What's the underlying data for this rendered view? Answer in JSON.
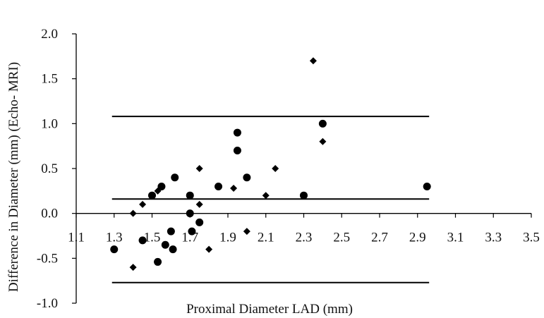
{
  "chart_data": {
    "type": "scatter",
    "title": "",
    "xlabel": "Proximal Diameter LAD (mm)",
    "ylabel": "Difference in Diameter (mm) (Echo- MRI)",
    "xlim": [
      1.1,
      3.5
    ],
    "ylim": [
      -1.0,
      2.0
    ],
    "x_ticks": [
      "1.1",
      "1.3",
      "1.5",
      "1.7",
      "1.9",
      "2.1",
      "2.3",
      "2.5",
      "2.7",
      "2.9",
      "3.1",
      "3.3",
      "3.5"
    ],
    "y_ticks": [
      "2.0",
      "1.5",
      "1.0",
      "0.5",
      "0.0",
      "-0.5",
      "-1.0"
    ],
    "grid": false,
    "legend": "none",
    "series": [
      {
        "marker": "circle",
        "color": "#000000",
        "points": [
          [
            1.3,
            -0.4
          ],
          [
            1.45,
            -0.3
          ],
          [
            1.5,
            0.2
          ],
          [
            1.53,
            -0.54
          ],
          [
            1.55,
            0.3
          ],
          [
            1.57,
            -0.35
          ],
          [
            1.6,
            -0.2
          ],
          [
            1.61,
            -0.4
          ],
          [
            1.62,
            0.4
          ],
          [
            1.7,
            0.2
          ],
          [
            1.7,
            0.0
          ],
          [
            1.71,
            -0.2
          ],
          [
            1.75,
            -0.1
          ],
          [
            1.85,
            0.3
          ],
          [
            1.95,
            0.9
          ],
          [
            1.95,
            0.7
          ],
          [
            2.0,
            0.4
          ],
          [
            2.3,
            0.2
          ],
          [
            2.4,
            1.0
          ],
          [
            2.95,
            0.3
          ]
        ]
      },
      {
        "marker": "diamond",
        "color": "#000000",
        "points": [
          [
            1.4,
            -0.6
          ],
          [
            1.4,
            0.0
          ],
          [
            1.45,
            0.1
          ],
          [
            1.53,
            0.25
          ],
          [
            1.75,
            0.5
          ],
          [
            1.75,
            0.1
          ],
          [
            1.8,
            -0.4
          ],
          [
            1.93,
            0.28
          ],
          [
            2.0,
            -0.2
          ],
          [
            2.1,
            0.2
          ],
          [
            2.15,
            0.5
          ],
          [
            2.35,
            1.7
          ],
          [
            2.4,
            0.8
          ]
        ]
      }
    ],
    "reference_lines": [
      {
        "y": 1.08,
        "x_from": 1.3,
        "x_to": 2.95
      },
      {
        "y": 0.16,
        "x_from": 1.3,
        "x_to": 2.95
      },
      {
        "y": -0.77,
        "x_from": 1.3,
        "x_to": 2.95
      }
    ]
  }
}
